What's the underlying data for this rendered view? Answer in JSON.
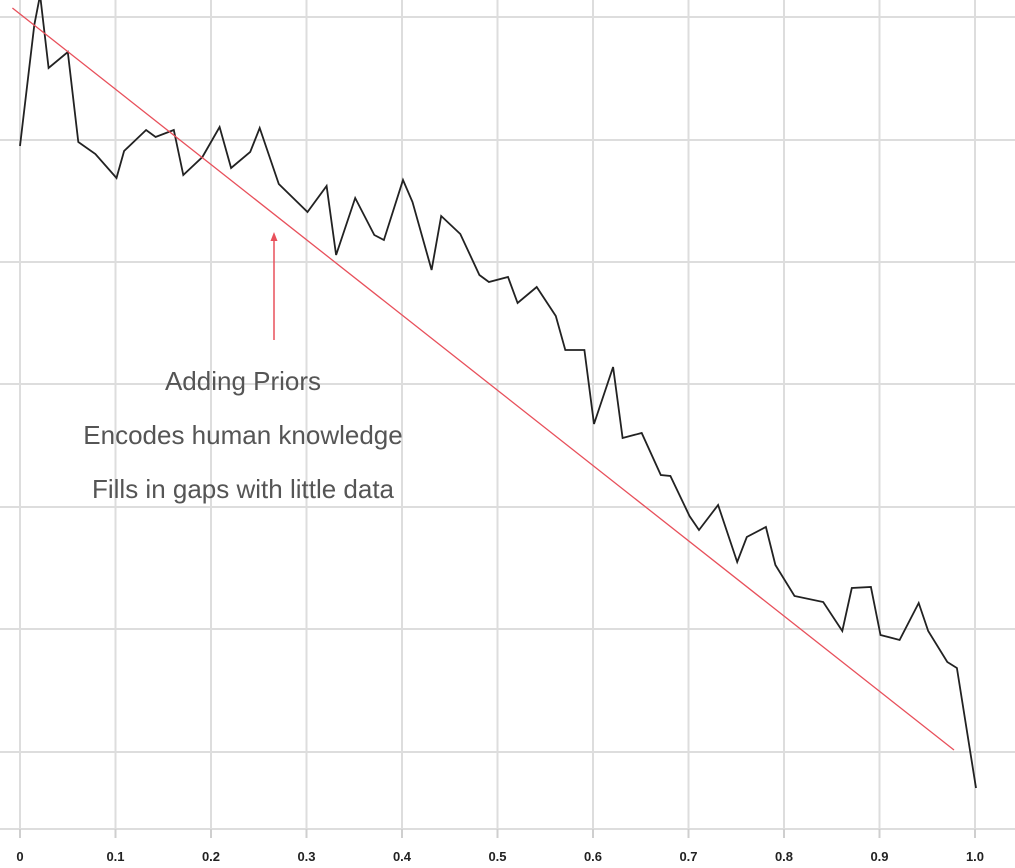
{
  "chart_data": {
    "type": "line",
    "xlim": [
      0,
      1.0
    ],
    "x_ticks": [
      "0",
      "0.1",
      "0.2",
      "0.3",
      "0.4",
      "0.5",
      "0.6",
      "0.7",
      "0.8",
      "0.9",
      "1.0"
    ],
    "x_tick_values": [
      0,
      0.1,
      0.2,
      0.3,
      0.4,
      0.5,
      0.6,
      0.7,
      0.8,
      0.9,
      1.0
    ],
    "y_axis_labels_shown": false,
    "grid": true,
    "series": [
      {
        "type": "line",
        "color": "#222222",
        "points": [
          [
            0.0,
            146
          ],
          [
            0.015,
            25
          ],
          [
            0.021,
            -5
          ],
          [
            0.03,
            68
          ],
          [
            0.05,
            52
          ],
          [
            0.061,
            142
          ],
          [
            0.079,
            154
          ],
          [
            0.101,
            178
          ],
          [
            0.109,
            151
          ],
          [
            0.132,
            130
          ],
          [
            0.142,
            137
          ],
          [
            0.161,
            130
          ],
          [
            0.171,
            175
          ],
          [
            0.191,
            157
          ],
          [
            0.209,
            127
          ],
          [
            0.221,
            168
          ],
          [
            0.241,
            152
          ],
          [
            0.251,
            128
          ],
          [
            0.271,
            184
          ],
          [
            0.301,
            212
          ],
          [
            0.321,
            186
          ],
          [
            0.331,
            255
          ],
          [
            0.351,
            198
          ],
          [
            0.371,
            235
          ],
          [
            0.381,
            240
          ],
          [
            0.401,
            180
          ],
          [
            0.411,
            202
          ],
          [
            0.431,
            270
          ],
          [
            0.441,
            216
          ],
          [
            0.461,
            234
          ],
          [
            0.481,
            275
          ],
          [
            0.491,
            282
          ],
          [
            0.511,
            277
          ],
          [
            0.521,
            303
          ],
          [
            0.541,
            287
          ],
          [
            0.561,
            316
          ],
          [
            0.571,
            350
          ],
          [
            0.591,
            350
          ],
          [
            0.601,
            424
          ],
          [
            0.621,
            367
          ],
          [
            0.631,
            438
          ],
          [
            0.651,
            433
          ],
          [
            0.671,
            475
          ],
          [
            0.681,
            476
          ],
          [
            0.701,
            516
          ],
          [
            0.711,
            530
          ],
          [
            0.731,
            505
          ],
          [
            0.751,
            562
          ],
          [
            0.761,
            537
          ],
          [
            0.781,
            527
          ],
          [
            0.791,
            565
          ],
          [
            0.811,
            596
          ],
          [
            0.841,
            602
          ],
          [
            0.861,
            631
          ],
          [
            0.871,
            588
          ],
          [
            0.891,
            587
          ],
          [
            0.901,
            635
          ],
          [
            0.921,
            640
          ],
          [
            0.941,
            603
          ],
          [
            0.951,
            631
          ],
          [
            0.971,
            662
          ],
          [
            0.981,
            668
          ],
          [
            1.001,
            788
          ]
        ]
      },
      {
        "type": "line",
        "color": "#e8505b",
        "points": [
          [
            -0.008,
            8
          ],
          [
            0.978,
            750
          ]
        ]
      }
    ],
    "annotations": {
      "arrow_color": "#e8505b",
      "text_lines": [
        "Adding Priors",
        "Encodes human knowledge",
        "Fills in gaps with little data"
      ]
    }
  }
}
